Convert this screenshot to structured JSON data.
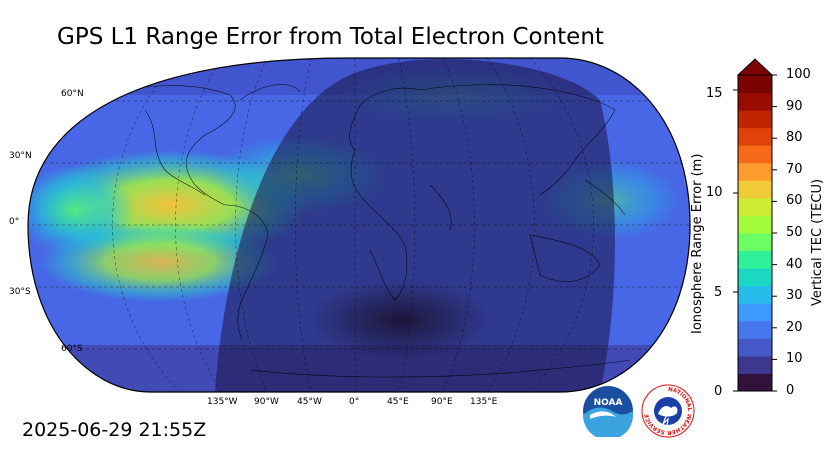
{
  "title": "GPS L1 Range Error from Total Electron Content",
  "timestamp": "2025-06-29 21:55Z",
  "map": {
    "projection": "robinson",
    "lat_labels": [
      "60°N",
      "30°N",
      "0°",
      "30°S",
      "60°S"
    ],
    "lon_labels": [
      "135°W",
      "90°W",
      "45°W",
      "0°",
      "45°E",
      "90°E",
      "135°E"
    ]
  },
  "colorbar": {
    "left_axis_label": "Ionosphere Range Error (m)",
    "left_ticks": [
      "15",
      "10",
      "5",
      "0"
    ],
    "right_axis_label": "Vertical TEC (TECU)",
    "right_ticks": [
      "100",
      "90",
      "80",
      "70",
      "60",
      "50",
      "40",
      "30",
      "20",
      "10",
      "0"
    ],
    "colors": [
      "#30123b",
      "#3e378f",
      "#4558c8",
      "#4777ef",
      "#3e9bfe",
      "#28bceb",
      "#1ad8c3",
      "#30f09a",
      "#6cfe62",
      "#a4fc3b",
      "#cded34",
      "#f1ca3a",
      "#fe9b2d",
      "#f56918",
      "#e04308",
      "#c02502",
      "#990c01",
      "#7a0403"
    ]
  },
  "logos": {
    "noaa_text": "NOAA",
    "nws_text": "NATIONAL WEATHER SERVICE"
  }
}
